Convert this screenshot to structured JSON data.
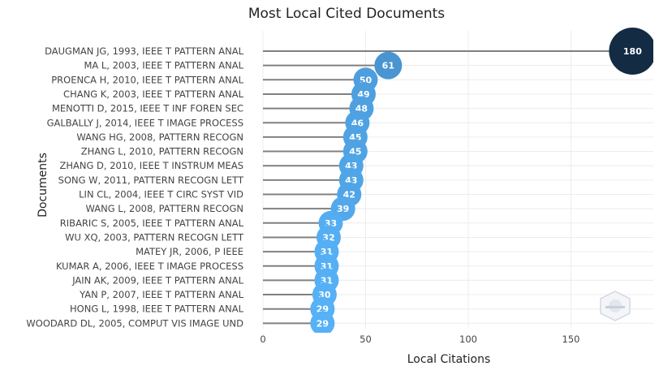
{
  "chart_data": {
    "type": "lollipop",
    "title": "Most Local Cited Documents",
    "xlabel": "Local Citations",
    "ylabel": "Documents",
    "xlim": [
      0,
      190
    ],
    "xticks": [
      0,
      50,
      100,
      150
    ],
    "grid": true,
    "categories": [
      "DAUGMAN JG, 1993, IEEE T PATTERN ANAL",
      "MA L, 2003, IEEE T PATTERN ANAL",
      "PROENCA H, 2010, IEEE T PATTERN ANAL",
      "CHANG K, 2003, IEEE T PATTERN ANAL",
      "MENOTTI D, 2015, IEEE T INF FOREN SEC",
      "GALBALLY J, 2014, IEEE T IMAGE PROCESS",
      "WANG HG, 2008, PATTERN RECOGN",
      "ZHANG L, 2010, PATTERN RECOGN",
      "ZHANG D, 2010, IEEE T INSTRUM MEAS",
      "SONG W, 2011, PATTERN RECOGN LETT",
      "LIN CL, 2004, IEEE T CIRC SYST VID",
      "WANG L, 2008, PATTERN RECOGN",
      "RIBARIC S, 2005, IEEE T PATTERN ANAL",
      "WU XQ, 2003, PATTERN RECOGN LETT",
      "MATEY JR, 2006, P IEEE",
      "KUMAR A, 2006, IEEE T IMAGE PROCESS",
      "JAIN AK, 2009, IEEE T PATTERN ANAL",
      "YAN P, 2007, IEEE T PATTERN ANAL",
      "HONG L, 1998, IEEE T PATTERN ANAL",
      "WOODARD DL, 2005, COMPUT VIS IMAGE UND"
    ],
    "values": [
      180,
      61,
      50,
      49,
      48,
      46,
      45,
      45,
      43,
      43,
      42,
      39,
      33,
      32,
      31,
      31,
      31,
      30,
      29,
      29
    ],
    "colors": {
      "low": "#56B1F7",
      "high": "#132B43",
      "stem": "#808080",
      "grid": "#ececec",
      "label": "#ffffff"
    }
  },
  "watermark": {
    "icon": "bibliometrix-logo-icon"
  }
}
